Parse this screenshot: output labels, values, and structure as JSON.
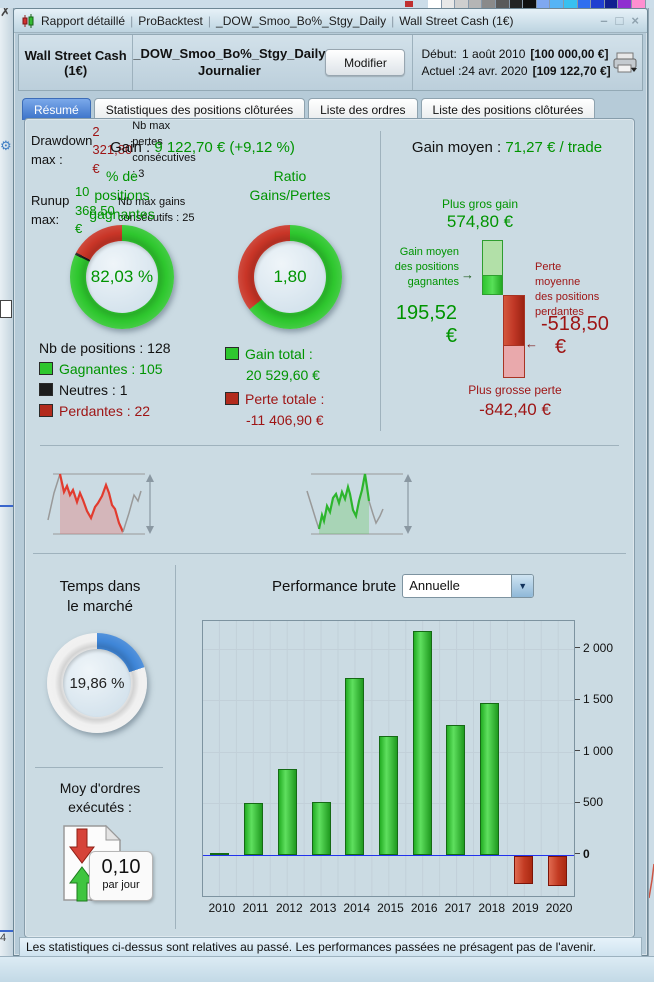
{
  "background": {
    "swatches": [
      "#ffffff",
      "#e8e8e8",
      "#cfcfcf",
      "#b5b5b5",
      "#8a8a8a",
      "#5a5a5a",
      "#242424",
      "#101010",
      "#7fa8f0",
      "#55b4f5",
      "#38c0f0",
      "#2f6ff0",
      "#1f3fd0",
      "#101f90",
      "#8f2fd0",
      "#ff8fd0"
    ],
    "price_axis_digit": "4"
  },
  "titlebar": {
    "items": [
      "Rapport détaillé",
      "ProBacktest",
      "_DOW_Smoo_Bo%_Stgy_Daily",
      "Wall Street Cash (1€)"
    ],
    "separator": "|",
    "controls": {
      "minimize": "–",
      "maximize": "□",
      "close": "×"
    }
  },
  "header": {
    "account": "Wall Street Cash (1€)",
    "strategy": "_DOW_Smoo_Bo%_Stgy_Daily",
    "timeframe": "Journalier",
    "modify_button": "Modifier",
    "rows": [
      {
        "label": "Début:",
        "date": "1 août 2010",
        "value": "[100 000,00 €]"
      },
      {
        "label": "Actuel :",
        "date": "24 avr. 2020",
        "value": "[109 122,70 €]"
      }
    ]
  },
  "tabs": [
    {
      "label": "Résumé",
      "active": true
    },
    {
      "label": "Statistiques des positions clôturées",
      "active": false
    },
    {
      "label": "Liste des ordres",
      "active": false
    },
    {
      "label": "Liste des positions clôturées",
      "active": false
    }
  ],
  "summary": {
    "gain_label": "Gain : ",
    "gain_value": "9 122,70 € (+9,12 %)",
    "gain_moyen_label": "Gain moyen : ",
    "gain_moyen_value": "71,27 € / trade",
    "winning_donut": {
      "title_lines": [
        "% de",
        "positions",
        "gagnantes"
      ],
      "center": "82,03 %",
      "segments": [
        {
          "color": "#2ec72e",
          "pct": 82.03
        },
        {
          "color": "#1c1c1c",
          "pct": 0.78
        },
        {
          "color": "#c93527",
          "pct": 17.19
        }
      ]
    },
    "ratio_donut": {
      "title_lines": [
        "Ratio",
        "Gains/Pertes"
      ],
      "center": "1,80",
      "segments": [
        {
          "color": "#2ec72e",
          "pct": 64.28
        },
        {
          "color": "#c93527",
          "pct": 35.72
        }
      ]
    },
    "positions": {
      "total": "Nb de positions : 128",
      "items": [
        {
          "swatch": "#2ec72e",
          "text": "Gagnantes : 105",
          "text_color": "#009400"
        },
        {
          "swatch": "#1c1c1c",
          "text": "Neutres : 1",
          "text_color": "#111111"
        },
        {
          "swatch": "#b22a1c",
          "text": "Perdantes : 22",
          "text_color": "#9e1414"
        }
      ]
    },
    "totals": {
      "gain": {
        "swatch": "#2ec72e",
        "label": "Gain total :",
        "value": "20 529,60 €"
      },
      "loss": {
        "swatch": "#b22a1c",
        "label": "Perte totale :",
        "value": "-11 406,90 €"
      }
    }
  },
  "avg_trade": {
    "best_label": "Plus gros gain",
    "best_value": "574,80 €",
    "avg_win_label_lines": [
      "Gain moyen",
      "des positions",
      "gagnantes"
    ],
    "avg_win_arrow": "→",
    "avg_win_value": "195,52",
    "avg_win_currency": "€",
    "avg_loss_label_lines": [
      "Perte",
      "moyenne",
      "des positions",
      "perdantes"
    ],
    "avg_loss_arrow": "←",
    "avg_loss_value": "-518,50",
    "avg_loss_currency": "€",
    "worst_label": "Plus grosse perte",
    "worst_value": "-842,40 €"
  },
  "drawdown": {
    "title": "Drawdown max :",
    "value": "2 321,80 €",
    "sub": "Nb max pertes consécutives : 3"
  },
  "runup": {
    "title": "Runup max:",
    "value": "10 368,50 €",
    "sub": "Nb max gains consécutifs : 25"
  },
  "market_time": {
    "title_lines": [
      "Temps dans",
      "le marché"
    ],
    "center": "19,86 %",
    "segments": [
      {
        "color": "#3f86d8",
        "pct": 19.86
      },
      {
        "color": "#f0f0f0",
        "pct": 80.14
      }
    ]
  },
  "orders": {
    "title_lines": [
      "Moy d'ordres",
      "exécutés :"
    ],
    "value": "0,10",
    "unit": "par jour"
  },
  "performance": {
    "label": "Performance brute",
    "dropdown_value": "Annuelle"
  },
  "chart_data": {
    "type": "bar",
    "title": "Performance brute (Annuelle)",
    "categories": [
      "2010",
      "2011",
      "2012",
      "2013",
      "2014",
      "2015",
      "2016",
      "2017",
      "2018",
      "2019",
      "2020"
    ],
    "values": [
      20,
      505,
      830,
      515,
      1720,
      1150,
      2170,
      1260,
      1470,
      -270,
      -290
    ],
    "xlabel": "",
    "ylabel": "",
    "ylim": [
      -400,
      2270
    ],
    "grid": true,
    "legend": "none",
    "positive_color": "#33cc33",
    "negative_color": "#c0392b",
    "zero_line_color": "#2233ee",
    "y_ticks": [
      {
        "v": 0,
        "label": "0",
        "bold": true
      },
      {
        "v": 500,
        "label": "500"
      },
      {
        "v": 1000,
        "label": "1 000"
      },
      {
        "v": 1500,
        "label": "1 500"
      },
      {
        "v": 2000,
        "label": "2 000"
      }
    ]
  },
  "status_bar": "Les statistiques ci-dessus sont relatives au passé. Les performances passées ne présagent pas de l'avenir.",
  "colors": {
    "positive_text": "#009400",
    "negative_text": "#9e1414",
    "active_tab": "#3a71c8",
    "panel_bg": "#cbdbe3",
    "time_in_market": "#3f86d8"
  }
}
